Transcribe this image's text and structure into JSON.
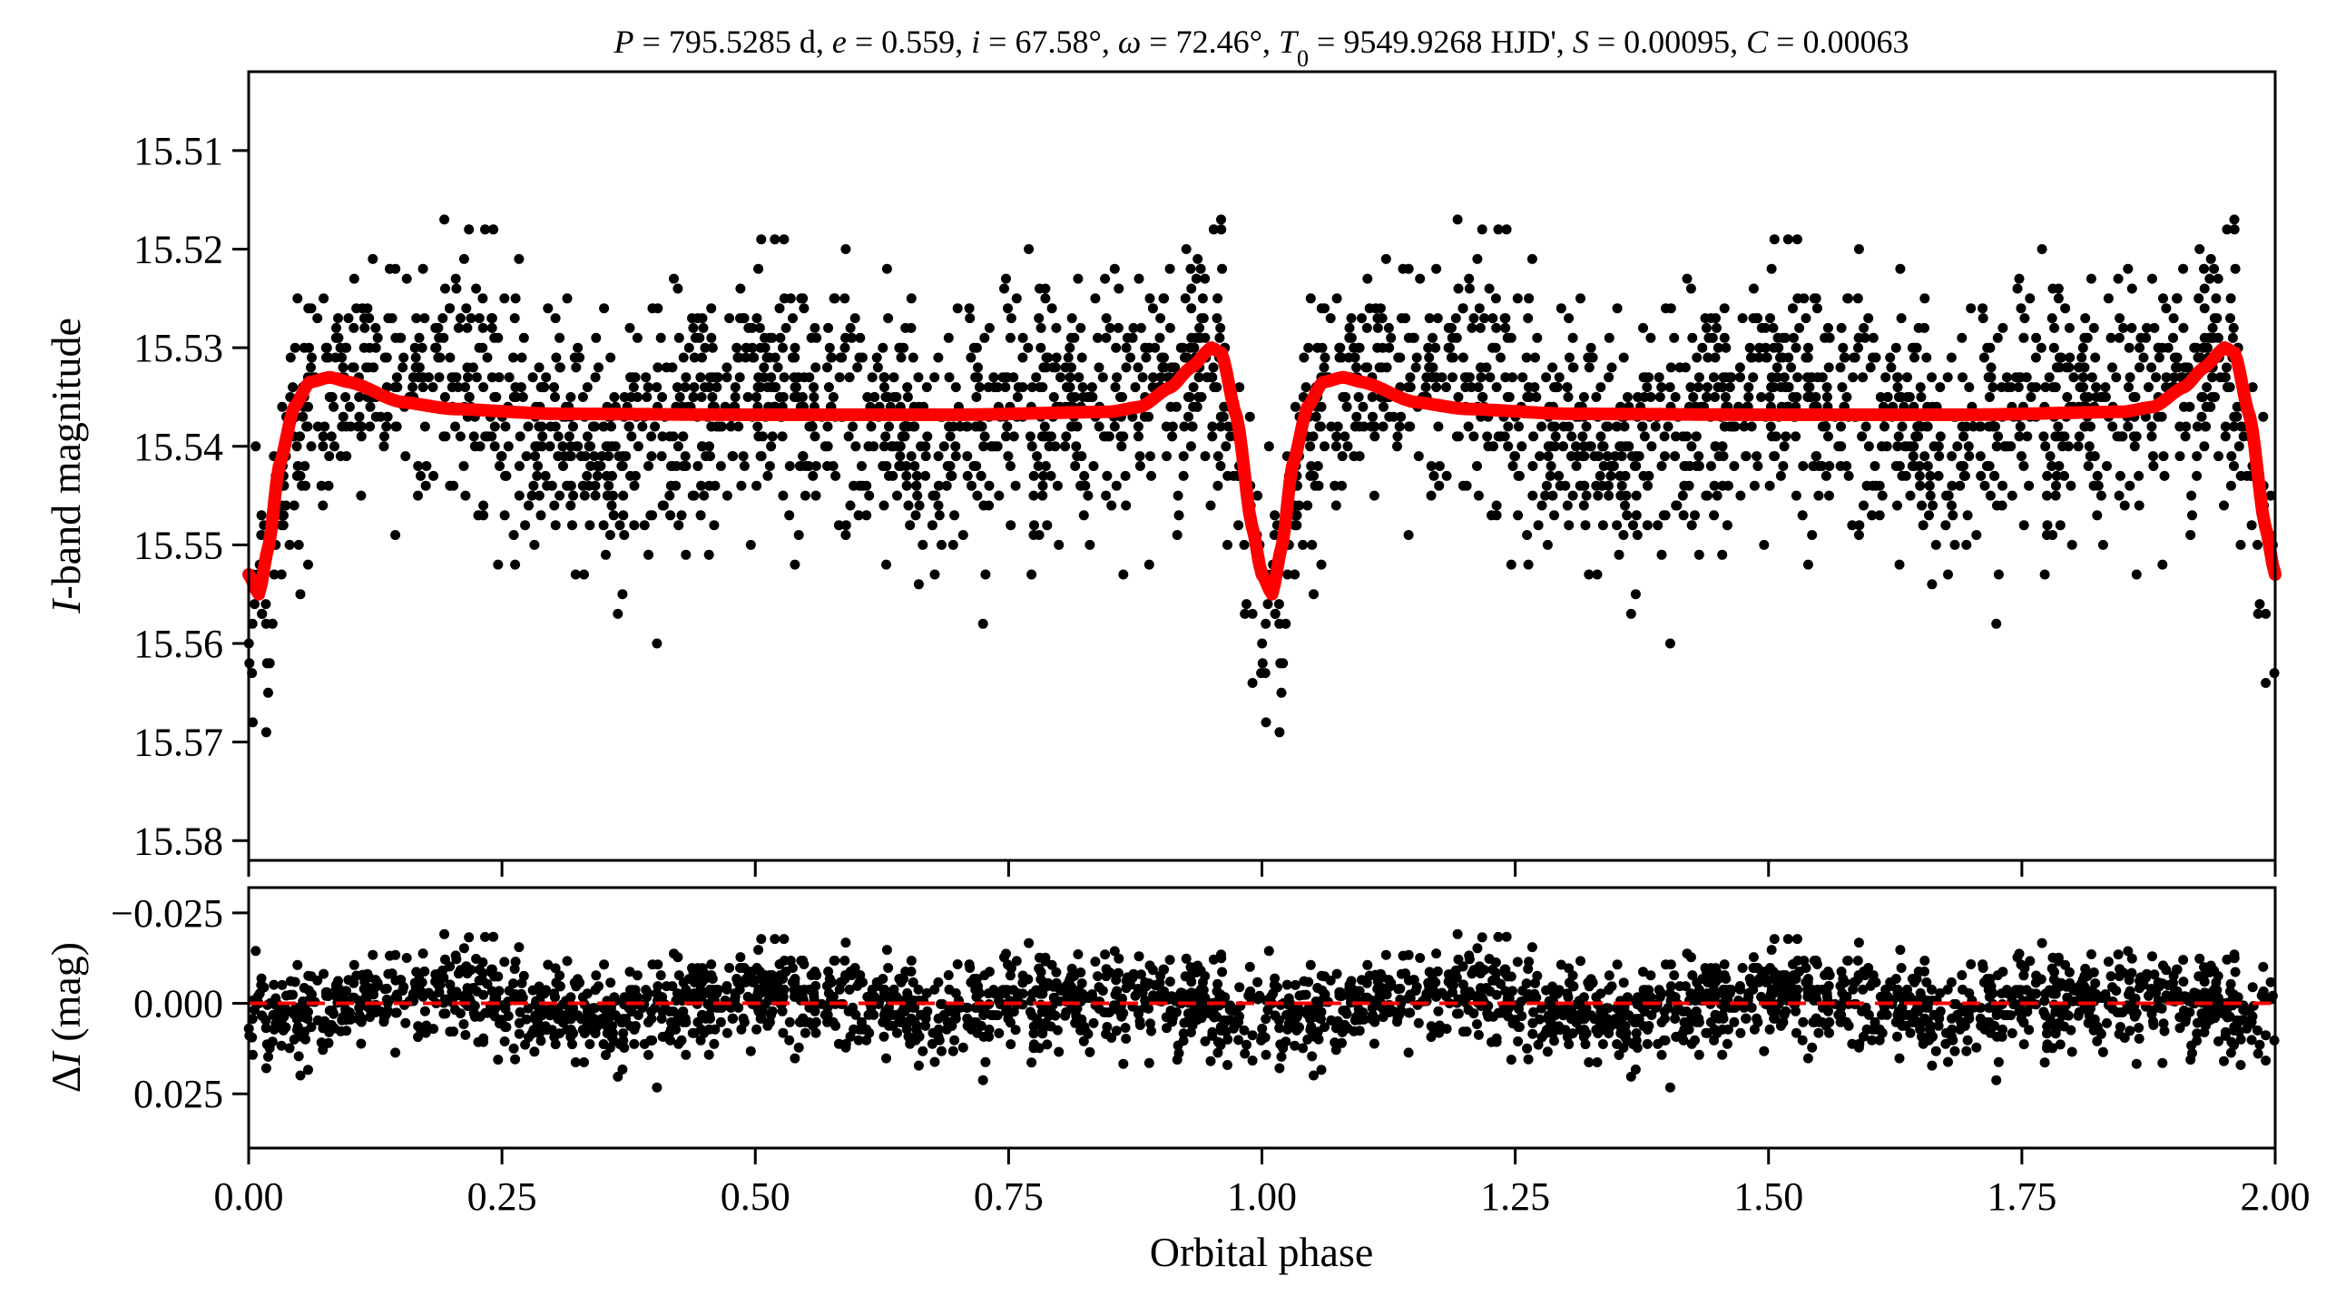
{
  "chart_data": [
    {
      "type": "scatter",
      "panel": "light-curve",
      "title_parts": [
        {
          "t": "P",
          "i": true
        },
        {
          "t": " = 795.5285 d, "
        },
        {
          "t": "e",
          "i": true
        },
        {
          "t": " = 0.559, "
        },
        {
          "t": "i",
          "i": true
        },
        {
          "t": " = 67.58°, "
        },
        {
          "t": "ω",
          "i": true
        },
        {
          "t": " = 72.46°, "
        },
        {
          "t": "T",
          "i": true
        },
        {
          "t": "0",
          "sub": true
        },
        {
          "t": " = 9549.9268 HJD', "
        },
        {
          "t": "S",
          "i": true
        },
        {
          "t": " = 0.00095, "
        },
        {
          "t": "C",
          "i": true
        },
        {
          "t": " = 0.00063"
        }
      ],
      "ylabel_italic": "I",
      "ylabel_rest": "-band magnitude",
      "xlim": [
        0,
        2
      ],
      "ylim": [
        15.502,
        15.582
      ],
      "y_inverted": true,
      "yticks": [
        "15.51",
        "15.52",
        "15.53",
        "15.54",
        "15.55",
        "15.56",
        "15.57",
        "15.58"
      ],
      "model_color": "#ff0000",
      "point_color": "#000000",
      "model_curve_one_cycle": [
        [
          0.0,
          15.553
        ],
        [
          0.01,
          15.555
        ],
        [
          0.02,
          15.55
        ],
        [
          0.03,
          15.542
        ],
        [
          0.045,
          15.536
        ],
        [
          0.06,
          15.5335
        ],
        [
          0.08,
          15.533
        ],
        [
          0.1,
          15.5335
        ],
        [
          0.15,
          15.5355
        ],
        [
          0.2,
          15.5362
        ],
        [
          0.3,
          15.5367
        ],
        [
          0.5,
          15.5368
        ],
        [
          0.7,
          15.5368
        ],
        [
          0.85,
          15.5365
        ],
        [
          0.88,
          15.536
        ],
        [
          0.91,
          15.534
        ],
        [
          0.93,
          15.532
        ],
        [
          0.95,
          15.53
        ],
        [
          0.96,
          15.5305
        ],
        [
          0.975,
          15.537
        ],
        [
          0.99,
          15.548
        ],
        [
          1.0,
          15.553
        ]
      ],
      "observations": {
        "n_per_cycle": 1300,
        "scatter_std_mag": 0.0075,
        "precision_mag": 0.001,
        "repeated_over_phases": [
          0,
          1
        ]
      }
    },
    {
      "type": "scatter",
      "panel": "residuals",
      "xlabel": "Orbital phase",
      "ylabel_prefix": "Δ",
      "ylabel_italic": "I",
      "ylabel_rest": " (mag)",
      "xlim": [
        0,
        2
      ],
      "ylim": [
        -0.032,
        0.04
      ],
      "y_inverted": true,
      "yticks": [
        {
          "v": -0.025,
          "label": "−0.025"
        },
        {
          "v": 0.0,
          "label": "0.000"
        },
        {
          "v": 0.025,
          "label": "0.025"
        }
      ],
      "xticks": [
        {
          "v": 0,
          "label": "0.00"
        },
        {
          "v": 0.25,
          "label": "0.25"
        },
        {
          "v": 0.5,
          "label": "0.50"
        },
        {
          "v": 0.75,
          "label": "0.75"
        },
        {
          "v": 1.0,
          "label": "1.00"
        },
        {
          "v": 1.25,
          "label": "1.25"
        },
        {
          "v": 1.5,
          "label": "1.50"
        },
        {
          "v": 1.75,
          "label": "1.75"
        },
        {
          "v": 2.0,
          "label": "2.00"
        }
      ],
      "zero_line": 0.0,
      "zero_line_color": "#ff0000",
      "zero_line_style": "dashed"
    }
  ]
}
